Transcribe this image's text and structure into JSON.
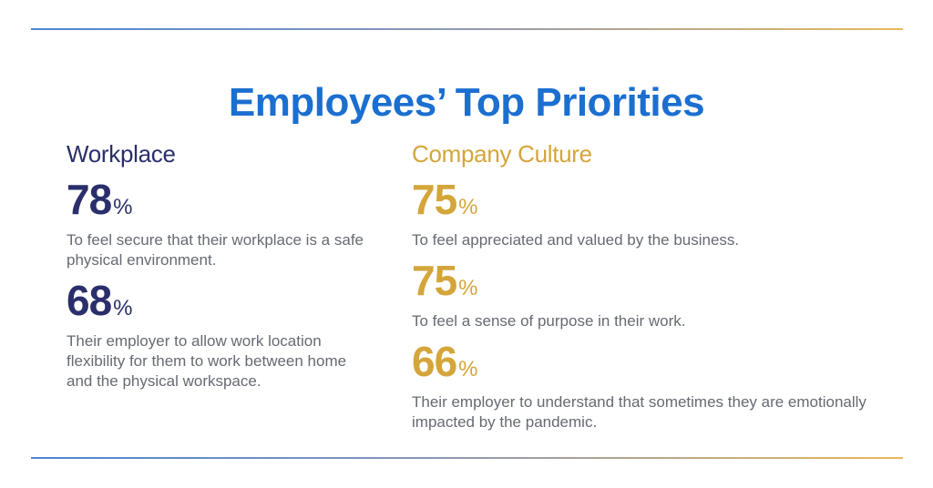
{
  "colors": {
    "title": "#1b6fd0",
    "workplace": "#2a2f6b",
    "culture": "#d4a53a",
    "body_text": "#666a72"
  },
  "title": "Employees’ Top Priorities",
  "workplace": {
    "heading": "Workplace",
    "stats": [
      {
        "value": "78",
        "unit": "%",
        "text": "To feel secure that their workplace is a safe physical environment."
      },
      {
        "value": "68",
        "unit": "%",
        "text": "Their employer to allow work location flexibility for them to work between home and the physical workspace."
      }
    ]
  },
  "culture": {
    "heading": "Company Culture",
    "stats": [
      {
        "value": "75",
        "unit": "%",
        "text": "To feel appreciated and valued by the business."
      },
      {
        "value": "75",
        "unit": "%",
        "text": "To feel a sense of purpose in their work."
      },
      {
        "value": "66",
        "unit": "%",
        "text": "Their employer to understand that sometimes they are emotionally impacted by the pandemic."
      }
    ]
  }
}
